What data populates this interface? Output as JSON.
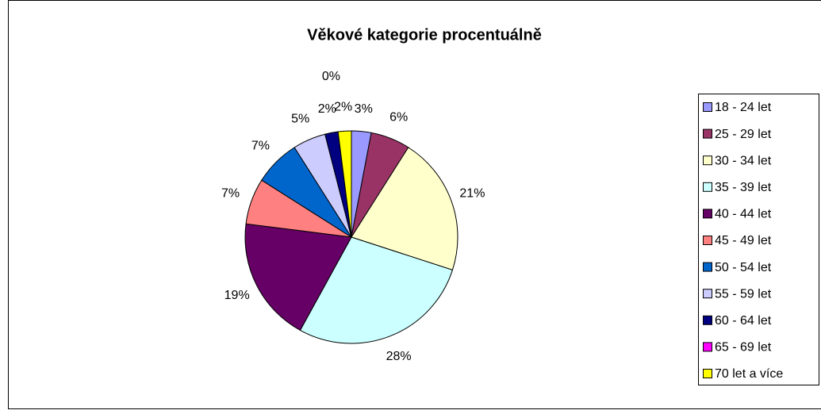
{
  "chart_data": {
    "type": "pie",
    "title": "Věkové kategorie procentuálně",
    "categories": [
      "18 - 24 let",
      "25 - 29 let",
      "30 - 34 let",
      "35 - 39 let",
      "40 - 44 let",
      "45 - 49 let",
      "50 - 54 let",
      "55 - 59 let",
      "60 - 64 let",
      "65 - 69 let",
      "70 let a více"
    ],
    "values": [
      3,
      6,
      21,
      28,
      19,
      7,
      7,
      5,
      2,
      0,
      2
    ],
    "value_labels": [
      "3%",
      "6%",
      "21%",
      "28%",
      "19%",
      "7%",
      "7%",
      "5%",
      "2%",
      "0%",
      "2%"
    ],
    "colors": [
      "#9999FF",
      "#993366",
      "#FFFFCC",
      "#CCFFFF",
      "#660066",
      "#FF8080",
      "#0066CC",
      "#CCCCFF",
      "#000080",
      "#FF00FF",
      "#FFFF00"
    ],
    "legend": "right"
  }
}
